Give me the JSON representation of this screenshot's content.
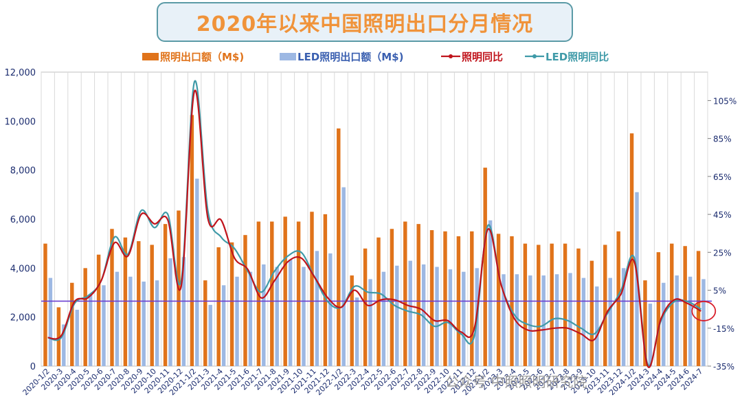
{
  "chart_data": {
    "type": "bar",
    "title": "2020年以来中国照明出口分月情况",
    "categories": [
      "2020-1/2",
      "2020-3",
      "2020-4",
      "2020-5",
      "2020-6",
      "2020-7",
      "2020-8",
      "2020-9",
      "2020-10",
      "2020-11",
      "2020-12",
      "2021-1/2",
      "2021-3",
      "2021-4",
      "2021-5",
      "2021-6",
      "2021-7",
      "2021-8",
      "2021-9",
      "2021-10",
      "2021-11",
      "2021-12",
      "2022-1/2",
      "2022-3",
      "2022-4",
      "2022-5",
      "2022-6",
      "2022-7",
      "2022-8",
      "2022-9",
      "2022-10",
      "2022-11",
      "2022-12",
      "2023-1/2",
      "2023-3",
      "2023-4",
      "2023-5",
      "2023-6",
      "2023-7",
      "2023-8",
      "2023-9",
      "2023-10",
      "2023-11",
      "2023-12",
      "2024-1/2",
      "2024-3",
      "2024-4",
      "2024-5",
      "2024-6",
      "2024-7"
    ],
    "series": [
      {
        "name": "照明出口额（M$)",
        "type": "bar",
        "axis": "left",
        "color": "#e0731a",
        "values": [
          5000,
          2400,
          3400,
          4000,
          4550,
          5600,
          5250,
          5100,
          4950,
          5800,
          6350,
          10250,
          3500,
          4850,
          5050,
          5350,
          5900,
          5900,
          6100,
          5900,
          6300,
          6200,
          9700,
          3700,
          4800,
          5250,
          5600,
          5900,
          5800,
          5550,
          5500,
          5300,
          5500,
          8100,
          5400,
          5300,
          5000,
          4950,
          5000,
          5000,
          4800,
          4300,
          4950,
          5500,
          9500,
          3500,
          4650,
          5000,
          4900,
          4700
        ]
      },
      {
        "name": "LED照明出口额（M$)",
        "type": "bar",
        "axis": "left",
        "color": "#9db8e3",
        "values": [
          3600,
          1700,
          2300,
          2900,
          3300,
          3850,
          3650,
          3450,
          3500,
          4400,
          4450,
          7650,
          2500,
          3300,
          3650,
          3850,
          4150,
          4050,
          4350,
          4050,
          4700,
          4600,
          7300,
          2800,
          3550,
          3850,
          4100,
          4300,
          4150,
          4050,
          3950,
          3850,
          4000,
          5950,
          3750,
          3750,
          3700,
          3700,
          3750,
          3800,
          3600,
          3250,
          3600,
          4000,
          7100,
          2550,
          3400,
          3700,
          3650,
          3550
        ]
      },
      {
        "name": "照明同比",
        "type": "line",
        "axis": "right",
        "color": "#c0141c",
        "values": [
          -20,
          -19,
          -1,
          1,
          10,
          30,
          23,
          45,
          40,
          42,
          7,
          110,
          43,
          42,
          22,
          16,
          1,
          10,
          20,
          22,
          12,
          1,
          -4,
          5,
          -3,
          0,
          0,
          -3,
          -5,
          -11,
          -11,
          -17,
          -15,
          37,
          8,
          -10,
          -16,
          -16,
          -15,
          -15,
          -18,
          -21,
          -6,
          3,
          20,
          -35,
          -10,
          0,
          -2,
          -6
        ]
      },
      {
        "name": "LED照明同比",
        "type": "line",
        "axis": "right",
        "color": "#3f9aa8",
        "values": [
          -20,
          -20,
          -2,
          2,
          10,
          33,
          24,
          47,
          38,
          45,
          10,
          115,
          47,
          33,
          27,
          15,
          4,
          15,
          23,
          25,
          12,
          -1,
          -4,
          7,
          4,
          3,
          -3,
          -6,
          -8,
          -14,
          -12,
          -18,
          -19,
          39,
          8,
          -8,
          -13,
          -14,
          -10,
          -11,
          -15,
          -18,
          -7,
          5,
          22,
          -34,
          -11,
          -1,
          -1,
          -5
        ]
      }
    ],
    "y_left": {
      "min": 0,
      "max": 12000,
      "ticks": [
        "0",
        "2,000",
        "4,000",
        "6,000",
        "8,000",
        "10,000",
        "12,000"
      ]
    },
    "y_right": {
      "min": -35,
      "max": 120,
      "ticks": [
        "-35%",
        "-15%",
        "5%",
        "25%",
        "45%",
        "65%",
        "85%",
        "105%"
      ]
    },
    "reference_line": {
      "value": 2650,
      "axis": "left",
      "color": "#6a3fd0"
    },
    "grid": true,
    "legend_position": "top"
  },
  "watermark": "公众号·中照照明研究院",
  "colors": {
    "title_box_border": "#5a9aa6",
    "title_box_fill": "#e8f1f8",
    "title_text": "#f0933a",
    "axis_text": "#1a2b6e"
  }
}
